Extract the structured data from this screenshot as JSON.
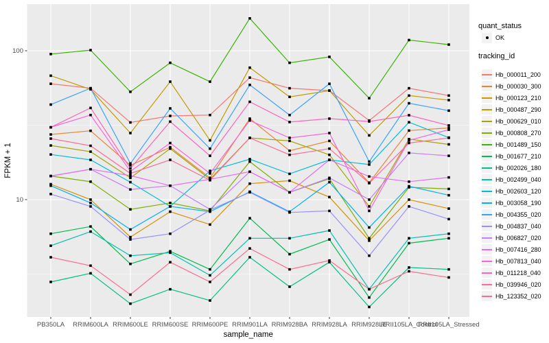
{
  "chart_data": {
    "type": "line",
    "title": "",
    "xlabel": "sample_name",
    "ylabel": "FPKM + 1",
    "y_scale": "log10",
    "y_tick_labels": [
      "100",
      "10"
    ],
    "y_tick_values": [
      100,
      10
    ],
    "y_minor_values": [
      31.62,
      3.162
    ],
    "ylim": [
      1.7,
      205
    ],
    "grid": true,
    "legend_position": "right",
    "panel_bg": "#EBEBEB",
    "grid_color": "#FFFFFF",
    "key_bg": "#F2F2F2",
    "tick_label_color": "#4D4D4D",
    "point_color": "#000000",
    "categories": [
      "PB350LA",
      "RRIM600LA",
      "RRIM600LE",
      "RRIM600SE",
      "RRIM600PE",
      "RRIM901LA",
      "RRIM928BA",
      "RRIM928LA",
      "RRIM928LE",
      "RRII105LA_Control",
      "RRII105LA_Stressed"
    ],
    "legend": {
      "quant_status": {
        "title": "quant_status",
        "items": [
          {
            "label": "OK",
            "marker": "point"
          }
        ]
      },
      "tracking": {
        "title": "tracking_id"
      }
    },
    "series": [
      {
        "name": "Hb_000011_200",
        "color": "#F8766D",
        "values": [
          60,
          56,
          33,
          36.5,
          37,
          66,
          56,
          54,
          34,
          56,
          50
        ]
      },
      {
        "name": "Hb_000030_300",
        "color": "#EA8331",
        "values": [
          27.4,
          29,
          17,
          22.5,
          14,
          35,
          21.3,
          24.8,
          13,
          29.1,
          30.3
        ]
      },
      {
        "name": "Hb_000123_210",
        "color": "#D89000",
        "values": [
          12.7,
          10,
          5.6,
          8.3,
          6.8,
          12.8,
          13.4,
          10.4,
          5.3,
          10,
          8.7
        ]
      },
      {
        "name": "Hb_000487_290",
        "color": "#C09B00",
        "values": [
          68,
          55,
          28,
          62,
          25,
          77,
          49,
          54,
          27,
          50,
          46.6
        ]
      },
      {
        "name": "Hb_000629_010",
        "color": "#A3A500",
        "values": [
          23.1,
          21,
          14,
          22,
          13.7,
          26,
          24.8,
          20,
          9,
          25.5,
          23.5
        ]
      },
      {
        "name": "Hb_000808_270",
        "color": "#7CAE00",
        "values": [
          14.4,
          13.2,
          8.6,
          9.5,
          8.4,
          18,
          11.2,
          13.8,
          5.5,
          12.1,
          11.8
        ]
      },
      {
        "name": "Hb_001489_150",
        "color": "#39B600",
        "values": [
          95,
          101,
          53,
          83,
          62,
          165,
          83,
          91,
          48,
          118,
          110
        ]
      },
      {
        "name": "Hb_001677_210",
        "color": "#00BB4E",
        "values": [
          5.9,
          6.6,
          3.7,
          4.5,
          3.4,
          7.5,
          4.3,
          5.4,
          2.2,
          5.1,
          5.5
        ]
      },
      {
        "name": "Hb_002026_180",
        "color": "#00C087",
        "values": [
          2.8,
          3.2,
          2.0,
          2.5,
          2.1,
          4.1,
          2.6,
          3.8,
          1.9,
          3.5,
          3.4
        ]
      },
      {
        "name": "Hb_002499_040",
        "color": "#00C0B2",
        "values": [
          4.9,
          6.1,
          4.2,
          4.4,
          3.1,
          5.5,
          5.5,
          6.2,
          2.5,
          5.5,
          5.9
        ]
      },
      {
        "name": "Hb_002603_120",
        "color": "#00BCD8",
        "values": [
          20.1,
          18.5,
          13.1,
          9.0,
          15.6,
          18.7,
          14.9,
          18.5,
          17.2,
          33.1,
          26.1
        ]
      },
      {
        "name": "Hb_003058_190",
        "color": "#00B0F6",
        "values": [
          12.4,
          9.5,
          6.3,
          9.0,
          8.3,
          11.3,
          8.3,
          13.1,
          6.5,
          12.3,
          10.7
        ]
      },
      {
        "name": "Hb_004355_020",
        "color": "#35A2FF",
        "values": [
          43.5,
          56,
          17.5,
          41,
          22,
          59,
          37,
          60,
          18,
          44.4,
          39.6
        ]
      },
      {
        "name": "Hb_004837_040",
        "color": "#9590FF",
        "values": [
          10.9,
          9.0,
          5.4,
          5.9,
          8.5,
          11.2,
          8.2,
          8.4,
          4.2,
          9.0,
          7.4
        ]
      },
      {
        "name": "Hb_006827_020",
        "color": "#C77CFF",
        "values": [
          14.4,
          16,
          11.7,
          12.4,
          8.6,
          15.4,
          11.2,
          14,
          10,
          20.6,
          19.7
        ]
      },
      {
        "name": "Hb_007416_280",
        "color": "#E76BF3",
        "values": [
          14.4,
          16,
          14.5,
          12.4,
          13.7,
          15.4,
          11.2,
          18.5,
          14.3,
          13.2,
          14.1
        ]
      },
      {
        "name": "Hb_007813_040",
        "color": "#FA62DB",
        "values": [
          30.6,
          37,
          15.5,
          24,
          15,
          34,
          26,
          28,
          8.4,
          25,
          29.5
        ]
      },
      {
        "name": "Hb_011218_040",
        "color": "#FF62BC",
        "values": [
          30.6,
          41.3,
          16.2,
          33.4,
          19.7,
          45.4,
          33.2,
          35,
          33.5,
          36.9,
          31.5
        ]
      },
      {
        "name": "Hb_039946_020",
        "color": "#FF6A98",
        "values": [
          25.7,
          23,
          15,
          18.5,
          13.5,
          26,
          20,
          22,
          12.9,
          24,
          26
        ]
      },
      {
        "name": "Hb_123352_020",
        "color": "#FF6B8F",
        "values": [
          4.1,
          3.6,
          2.3,
          3.8,
          2.8,
          4.7,
          3.4,
          3.9,
          2.5,
          3.3,
          3.0
        ]
      }
    ]
  }
}
